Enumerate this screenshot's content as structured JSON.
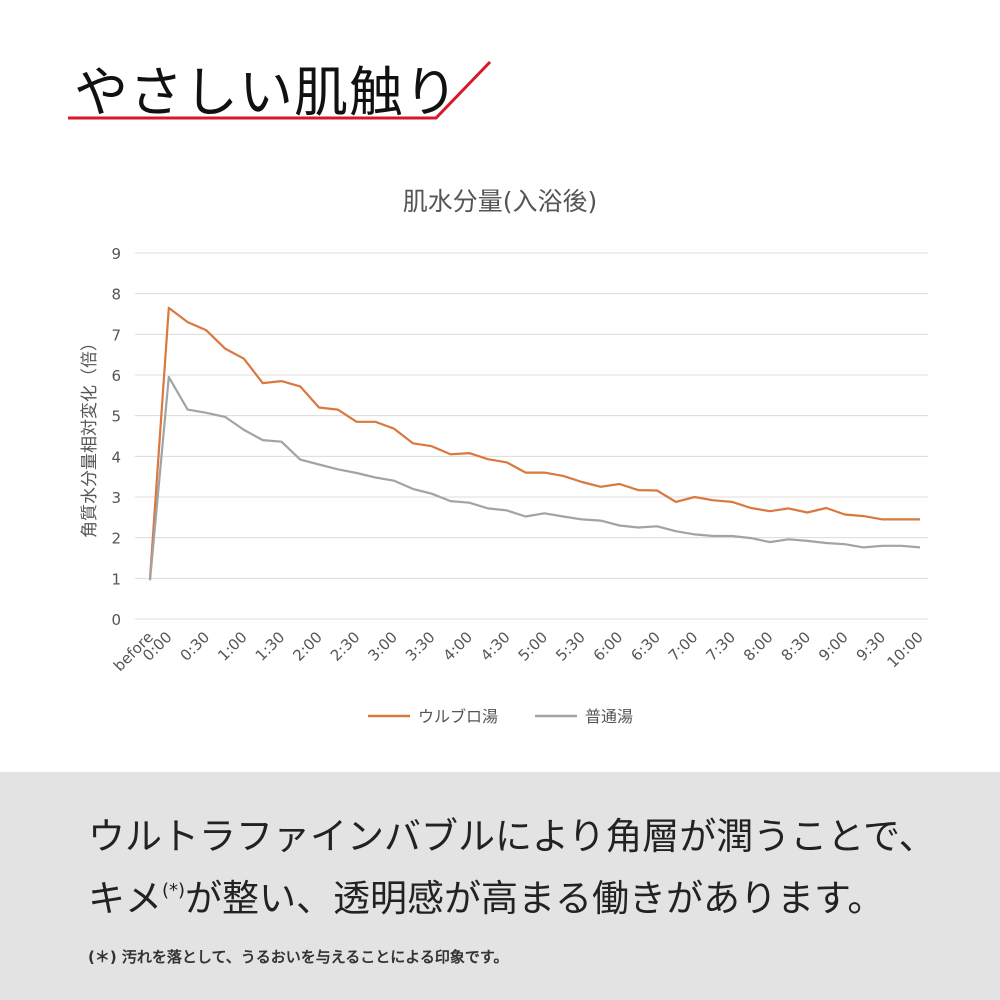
{
  "heading": {
    "title": "やさしい肌触り",
    "accent_color": "#d7182a"
  },
  "chart_data": {
    "type": "line",
    "title": "肌水分量(入浴後)",
    "xlabel": "",
    "ylabel": "角質水分量相対変化（倍）",
    "ylim": [
      0,
      9
    ],
    "yticks": [
      0,
      1,
      2,
      3,
      4,
      5,
      6,
      7,
      8,
      9
    ],
    "grid": true,
    "legend_position": "bottom",
    "x": [
      "before",
      "0:00",
      "0:15",
      "0:30",
      "0:45",
      "1:00",
      "1:15",
      "1:30",
      "1:45",
      "2:00",
      "2:15",
      "2:30",
      "2:45",
      "3:00",
      "3:15",
      "3:30",
      "3:45",
      "4:00",
      "4:15",
      "4:30",
      "4:45",
      "5:00",
      "5:15",
      "5:30",
      "5:45",
      "6:00",
      "6:15",
      "6:30",
      "6:45",
      "7:00",
      "7:15",
      "7:30",
      "7:45",
      "8:00",
      "8:15",
      "8:30",
      "8:45",
      "9:00",
      "9:15",
      "9:30",
      "9:45",
      "10:00"
    ],
    "xtick_labels": [
      "before",
      "0:00",
      "0:30",
      "1:00",
      "1:30",
      "2:00",
      "2:30",
      "3:00",
      "3:30",
      "4:00",
      "4:30",
      "5:00",
      "5:30",
      "6:00",
      "6:30",
      "7:00",
      "7:30",
      "8:00",
      "8:30",
      "9:00",
      "9:30",
      "10:00"
    ],
    "series": [
      {
        "name": "ウルブロ湯",
        "color": "#d9783f",
        "values": [
          1.0,
          7.65,
          7.3,
          7.1,
          6.65,
          6.4,
          5.8,
          5.85,
          5.72,
          5.2,
          5.15,
          4.85,
          4.85,
          4.68,
          4.32,
          4.25,
          4.05,
          4.08,
          3.93,
          3.85,
          3.6,
          3.6,
          3.52,
          3.37,
          3.25,
          3.32,
          3.17,
          3.16,
          2.88,
          3.0,
          2.92,
          2.88,
          2.73,
          2.65,
          2.72,
          2.62,
          2.73,
          2.57,
          2.53,
          2.45,
          2.45,
          2.45
        ]
      },
      {
        "name": "普通湯",
        "color": "#a3a3a3",
        "values": [
          0.95,
          5.95,
          5.15,
          5.07,
          4.97,
          4.65,
          4.4,
          4.36,
          3.92,
          3.8,
          3.68,
          3.59,
          3.48,
          3.4,
          3.2,
          3.08,
          2.9,
          2.86,
          2.72,
          2.67,
          2.52,
          2.6,
          2.52,
          2.45,
          2.42,
          2.3,
          2.25,
          2.28,
          2.16,
          2.08,
          2.04,
          2.04,
          1.99,
          1.89,
          1.96,
          1.92,
          1.87,
          1.84,
          1.76,
          1.8,
          1.8,
          1.76
        ]
      }
    ]
  },
  "message": {
    "line1": "ウルトラファインバブルにより角層が潤うことで、",
    "line2_pre": "キメ",
    "line2_mark": "(*)",
    "line2_post": "が整い、透明感が高まる働きがあります。"
  },
  "note": "(＊) 汚れを落として、うるおいを与えることによる印象です。"
}
